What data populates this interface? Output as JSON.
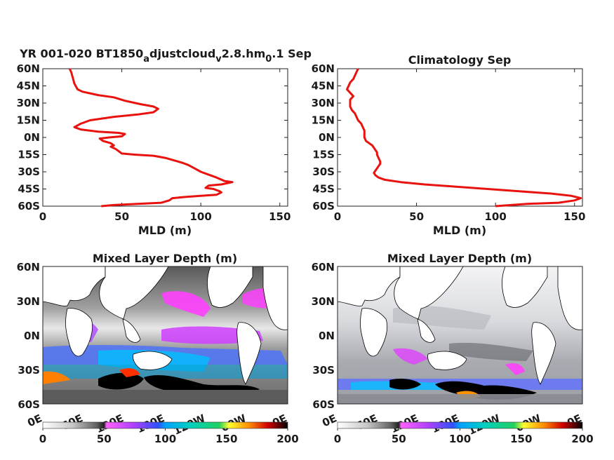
{
  "chart_data": [
    {
      "type": "line",
      "title_parts": [
        "YR 001-020 BT1850",
        "a",
        "djustcloud",
        "v",
        "2.8.hm",
        "0",
        ".1 Sep"
      ],
      "xlabel": "MLD (m)",
      "xlim": [
        0,
        155
      ],
      "ylim": [
        -60,
        60
      ],
      "xticks": [
        "0",
        "50",
        "100",
        "150"
      ],
      "yticks": [
        "60N",
        "45N",
        "30N",
        "15N",
        "0N",
        "15S",
        "30S",
        "45S",
        "60S"
      ],
      "line_color": "#e8130f",
      "series": [
        {
          "points": [
            [
              17,
              60
            ],
            [
              18,
              57
            ],
            [
              19,
              52
            ],
            [
              20,
              47
            ],
            [
              22,
              42
            ],
            [
              25,
              40
            ],
            [
              35,
              37
            ],
            [
              45,
              35
            ],
            [
              52,
              32
            ],
            [
              62,
              29
            ],
            [
              70,
              27
            ],
            [
              73,
              25
            ],
            [
              70,
              22
            ],
            [
              60,
              20
            ],
            [
              45,
              18
            ],
            [
              30,
              15
            ],
            [
              24,
              12
            ],
            [
              20,
              9
            ],
            [
              24,
              7
            ],
            [
              35,
              5
            ],
            [
              48,
              4
            ],
            [
              52,
              3
            ],
            [
              50,
              1
            ],
            [
              42,
              0
            ],
            [
              36,
              -1
            ],
            [
              38,
              -3
            ],
            [
              43,
              -5
            ],
            [
              45,
              -7
            ],
            [
              43,
              -8
            ],
            [
              46,
              -10
            ],
            [
              48,
              -12
            ],
            [
              50,
              -14
            ],
            [
              58,
              -15
            ],
            [
              70,
              -16
            ],
            [
              78,
              -18
            ],
            [
              83,
              -20
            ],
            [
              88,
              -22
            ],
            [
              92,
              -24
            ],
            [
              96,
              -27
            ],
            [
              100,
              -30
            ],
            [
              104,
              -32
            ],
            [
              110,
              -35
            ],
            [
              115,
              -38
            ],
            [
              120,
              -39
            ],
            [
              113,
              -41
            ],
            [
              105,
              -42
            ],
            [
              103,
              -44
            ],
            [
              108,
              -45
            ],
            [
              112,
              -47
            ],
            [
              113,
              -48
            ],
            [
              110,
              -50
            ],
            [
              100,
              -51
            ],
            [
              90,
              -52
            ],
            [
              82,
              -53
            ],
            [
              80,
              -55
            ],
            [
              75,
              -57
            ],
            [
              60,
              -58
            ],
            [
              45,
              -59
            ],
            [
              37,
              -60
            ]
          ]
        }
      ]
    },
    {
      "type": "line",
      "title": "Climatology Sep",
      "xlabel": "MLD (m)",
      "xlim": [
        0,
        155
      ],
      "ylim": [
        -60,
        60
      ],
      "xticks": [
        "0",
        "50",
        "100",
        "150"
      ],
      "yticks": [
        "60N",
        "45N",
        "30N",
        "15N",
        "0N",
        "15S",
        "30S",
        "45S",
        "60S"
      ],
      "line_color": "#e8130f",
      "series": [
        {
          "points": [
            [
              13,
              60
            ],
            [
              12,
              57
            ],
            [
              11,
              54
            ],
            [
              10,
              51
            ],
            [
              8,
              48
            ],
            [
              7,
              45
            ],
            [
              6,
              42
            ],
            [
              8,
              39
            ],
            [
              10,
              36
            ],
            [
              8,
              33
            ],
            [
              8,
              30
            ],
            [
              8,
              27
            ],
            [
              9,
              24
            ],
            [
              11,
              21
            ],
            [
              12,
              18
            ],
            [
              13,
              15
            ],
            [
              15,
              12
            ],
            [
              16,
              9
            ],
            [
              17,
              6
            ],
            [
              17,
              3
            ],
            [
              17,
              0
            ],
            [
              18,
              -3
            ],
            [
              20,
              -5
            ],
            [
              22,
              -7
            ],
            [
              23,
              -9
            ],
            [
              24,
              -11
            ],
            [
              25,
              -13
            ],
            [
              25,
              -15
            ],
            [
              26,
              -18
            ],
            [
              27,
              -21
            ],
            [
              27,
              -23
            ],
            [
              26,
              -25
            ],
            [
              25,
              -27
            ],
            [
              24,
              -29
            ],
            [
              23,
              -31
            ],
            [
              24,
              -33
            ],
            [
              26,
              -35
            ],
            [
              30,
              -37
            ],
            [
              40,
              -39
            ],
            [
              55,
              -41
            ],
            [
              75,
              -43
            ],
            [
              95,
              -45
            ],
            [
              115,
              -47
            ],
            [
              135,
              -49
            ],
            [
              148,
              -51
            ],
            [
              154,
              -53
            ],
            [
              150,
              -55
            ],
            [
              140,
              -57
            ],
            [
              120,
              -58
            ],
            [
              100,
              -60
            ]
          ]
        }
      ]
    },
    {
      "type": "heatmap",
      "title": "Mixed Layer Depth (m)",
      "yticks": [
        "60N",
        "30N",
        "0N",
        "30S",
        "60S"
      ],
      "xticks": [
        "0E",
        "60E",
        "120E",
        "180E",
        "120W",
        "60W",
        "0E"
      ],
      "colorbar_ticks": [
        "0",
        "50",
        "100",
        "150",
        "200"
      ],
      "colorbar_range": [
        0,
        200
      ],
      "colormap": [
        "#ffffff",
        "#d0d0d0",
        "#808080",
        "#303030",
        "#ff40ff",
        "#a040ff",
        "#4060ff",
        "#00c8ff",
        "#00d090",
        "#ffff40",
        "#ff8000",
        "#c80000",
        "#000000"
      ]
    },
    {
      "type": "heatmap",
      "title": "Mixed Layer Depth (m)",
      "yticks": [
        "60N",
        "30N",
        "0N",
        "30S",
        "60S"
      ],
      "xticks": [
        "0E",
        "60E",
        "120E",
        "180E",
        "120W",
        "60W",
        "0E"
      ],
      "colorbar_ticks": [
        "0",
        "50",
        "100",
        "150",
        "200"
      ],
      "colorbar_range": [
        0,
        200
      ],
      "colormap": [
        "#ffffff",
        "#d0d0d0",
        "#808080",
        "#303030",
        "#ff40ff",
        "#a040ff",
        "#4060ff",
        "#00c8ff",
        "#00d090",
        "#ffff40",
        "#ff8000",
        "#c80000",
        "#000000"
      ]
    }
  ]
}
